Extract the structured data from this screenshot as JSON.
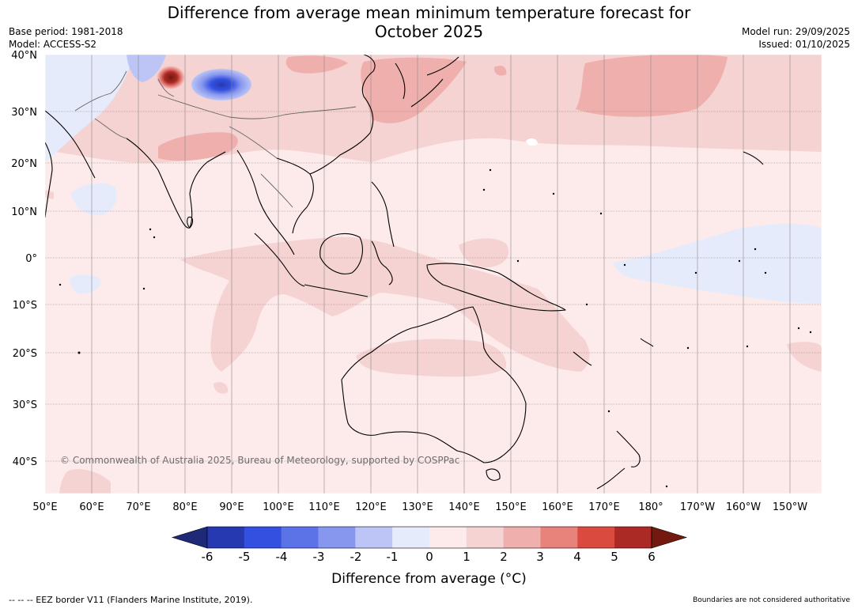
{
  "header": {
    "title_line1": "Difference from average mean minimum temperature forecast for",
    "title_line2": "October 2025",
    "base_period": "Base period: 1981-2018",
    "model": "Model: ACCESS-S2",
    "model_run": "Model run: 29/09/2025",
    "issued": "Issued: 01/10/2025"
  },
  "map": {
    "copyright": "© Commonwealth of Australia 2025, Bureau of Meteorology, supported by COSPPac",
    "lat_labels": [
      "40°N",
      "30°N",
      "20°N",
      "10°N",
      "0°",
      "10°S",
      "20°S",
      "30°S",
      "40°S"
    ],
    "lon_labels": [
      "50°E",
      "60°E",
      "70°E",
      "80°E",
      "90°E",
      "100°E",
      "110°E",
      "120°E",
      "130°E",
      "140°E",
      "150°E",
      "160°E",
      "170°E",
      "180°",
      "170°W",
      "160°W",
      "150°W"
    ]
  },
  "colorbar": {
    "ticks": [
      "-6",
      "-5",
      "-4",
      "-3",
      "-2",
      "-1",
      "0",
      "1",
      "2",
      "3",
      "4",
      "5",
      "6"
    ],
    "colors": [
      "#1e2a78",
      "#2639b0",
      "#3350e0",
      "#5c73e8",
      "#8797ee",
      "#bcc5f5",
      "#e6ebfc",
      "#fcebea",
      "#f5d3d2",
      "#efb0ad",
      "#e8837c",
      "#da4a3e",
      "#ab2a25",
      "#74190f"
    ],
    "label": "Difference from average (°C)"
  },
  "footer": {
    "eez": "-- -- -- EEZ border V11 (Flanders Marine Institute, 2019).",
    "disclaimer": "Boundaries are not considered authoritative"
  }
}
